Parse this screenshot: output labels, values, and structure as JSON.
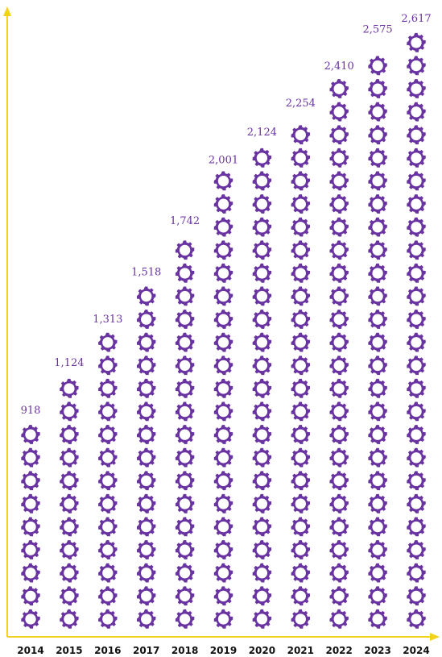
{
  "colors": {
    "axis": "#f2d21b",
    "gear": "#6a33a2",
    "value_label": "#6a33a2",
    "year_label": "#111111"
  },
  "icon": "gear-icon",
  "chart_data": {
    "type": "bar",
    "title": "",
    "xlabel": "",
    "ylabel": "",
    "categories": [
      "2014",
      "2015",
      "2016",
      "2017",
      "2018",
      "2019",
      "2020",
      "2021",
      "2022",
      "2023",
      "2024"
    ],
    "values": [
      918,
      1124,
      1313,
      1518,
      1742,
      2001,
      2124,
      2254,
      2410,
      2575,
      2617
    ],
    "value_labels": [
      "918",
      "1,124",
      "1,313",
      "1,518",
      "1,742",
      "2,001",
      "2,124",
      "2,254",
      "2,410",
      "2,575",
      "2,617"
    ],
    "units_per_icon": 100,
    "grid": false
  }
}
